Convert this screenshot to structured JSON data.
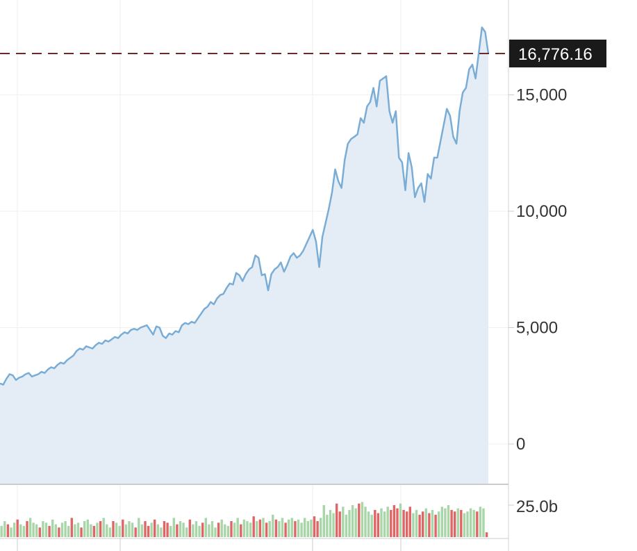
{
  "chart_data": {
    "type": "area",
    "title": "",
    "xlabel": "",
    "ylabel": "",
    "ylim": [
      0,
      20000
    ],
    "y_ticks": [
      {
        "value": 0,
        "label": "0"
      },
      {
        "value": 5000,
        "label": "5,000"
      },
      {
        "value": 10000,
        "label": "10,000"
      },
      {
        "value": 15000,
        "label": "15,000"
      }
    ],
    "grid": true,
    "last_value": 16776.16,
    "last_value_label": "16,776.16",
    "series": [
      {
        "values": [
          2600,
          2550,
          2800,
          3000,
          2950,
          2750,
          2850,
          2900,
          3000,
          3050,
          2900,
          2950,
          3000,
          3100,
          3050,
          3200,
          3300,
          3250,
          3400,
          3500,
          3450,
          3600,
          3700,
          3800,
          4000,
          4100,
          4050,
          4200,
          4150,
          4100,
          4250,
          4350,
          4300,
          4450,
          4400,
          4500,
          4600,
          4550,
          4700,
          4800,
          4750,
          4900,
          4950,
          4900,
          5000,
          5050,
          5100,
          4900,
          4700,
          5050,
          5000,
          4650,
          4550,
          4750,
          4700,
          4850,
          4800,
          5100,
          5200,
          5150,
          5250,
          5200,
          5400,
          5600,
          5800,
          5900,
          6100,
          6000,
          6250,
          6400,
          6450,
          6700,
          6900,
          6850,
          7350,
          7250,
          7000,
          7300,
          7500,
          7600,
          8100,
          8000,
          7250,
          7300,
          6600,
          7300,
          7500,
          7600,
          7800,
          7400,
          7700,
          8050,
          8200,
          8000,
          8100,
          8300,
          8600,
          8900,
          9200,
          8700,
          7600,
          8900,
          9500,
          10100,
          10800,
          11800,
          11300,
          11000,
          12200,
          12900,
          13100,
          13200,
          13300,
          14000,
          13800,
          14500,
          14700,
          15300,
          14500,
          15600,
          15700,
          15800,
          14300,
          13800,
          14300,
          12300,
          12100,
          10900,
          12500,
          11900,
          10600,
          11000,
          11200,
          10400,
          11600,
          11400,
          12300,
          12300,
          13000,
          13700,
          14400,
          14100,
          13200,
          12900,
          14300,
          15100,
          15300,
          16100,
          16300,
          15700,
          16800,
          17900,
          17700,
          16776.16
        ]
      }
    ],
    "volume": {
      "axis_label": "25.0b",
      "values": [
        0.35,
        0.5,
        0.4,
        0.3,
        0.45,
        0.55,
        0.4,
        0.35,
        0.5,
        0.6,
        0.45,
        0.4,
        0.3,
        0.5,
        0.45,
        0.35,
        0.55,
        0.4,
        0.3,
        0.45,
        0.5,
        0.35,
        0.6,
        0.4,
        0.45,
        0.3,
        0.5,
        0.55,
        0.4,
        0.35,
        0.45,
        0.5,
        0.6,
        0.4,
        0.3,
        0.5,
        0.45,
        0.35,
        0.55,
        0.4,
        0.5,
        0.45,
        0.3,
        0.6,
        0.4,
        0.5,
        0.35,
        0.45,
        0.55,
        0.4,
        0.3,
        0.5,
        0.45,
        0.35,
        0.6,
        0.4,
        0.5,
        0.45,
        0.3,
        0.55,
        0.4,
        0.5,
        0.35,
        0.45,
        0.6,
        0.4,
        0.5,
        0.3,
        0.45,
        0.55,
        0.4,
        0.35,
        0.5,
        0.45,
        0.6,
        0.4,
        0.55,
        0.5,
        0.45,
        0.65,
        0.5,
        0.55,
        0.6,
        0.45,
        0.5,
        0.7,
        0.55,
        0.5,
        0.6,
        0.45,
        0.55,
        0.6,
        0.5,
        0.55,
        0.45,
        0.6,
        0.5,
        0.55,
        0.65,
        0.5,
        0.6,
        1.0,
        0.7,
        0.85,
        0.75,
        1.05,
        0.8,
        0.95,
        0.7,
        0.85,
        1.0,
        0.9,
        1.05,
        1.1,
        0.95,
        0.8,
        0.7,
        0.85,
        0.75,
        0.9,
        0.8,
        0.95,
        0.85,
        1.0,
        0.9,
        1.05,
        0.85,
        0.8,
        0.95,
        0.75,
        0.85,
        0.7,
        0.8,
        0.9,
        0.75,
        0.85,
        0.7,
        0.8,
        0.95,
        0.9,
        1.0,
        0.85,
        0.8,
        0.9,
        0.85,
        0.75,
        0.8,
        0.9,
        0.85,
        0.8,
        0.95,
        0.9,
        0.15
      ],
      "up": [
        1,
        1,
        0,
        1,
        1,
        0,
        1,
        1,
        0,
        1,
        1,
        1,
        0,
        1,
        1,
        0,
        1,
        1,
        0,
        1,
        1,
        1,
        0,
        1,
        1,
        0,
        1,
        1,
        1,
        0,
        1,
        0,
        1,
        1,
        1,
        0,
        1,
        1,
        0,
        1,
        1,
        1,
        0,
        1,
        1,
        0,
        0,
        1,
        0,
        1,
        1,
        0,
        0,
        1,
        1,
        0,
        1,
        1,
        1,
        0,
        1,
        1,
        1,
        0,
        1,
        1,
        1,
        1,
        0,
        1,
        1,
        1,
        0,
        1,
        1,
        0,
        1,
        1,
        1,
        0,
        1,
        0,
        1,
        0,
        1,
        1,
        0,
        1,
        1,
        0,
        1,
        1,
        0,
        1,
        1,
        1,
        1,
        1,
        0,
        0,
        1,
        1,
        1,
        1,
        1,
        0,
        0,
        1,
        1,
        1,
        1,
        1,
        0,
        1,
        1,
        1,
        1,
        0,
        0,
        1,
        1,
        1,
        0,
        0,
        0,
        1,
        0,
        0,
        0,
        1,
        1,
        0,
        0,
        1,
        0,
        1,
        0,
        1,
        1,
        1,
        1,
        0,
        0,
        1,
        0,
        1,
        1,
        1,
        1,
        0,
        1,
        1,
        0,
        0
      ]
    }
  }
}
